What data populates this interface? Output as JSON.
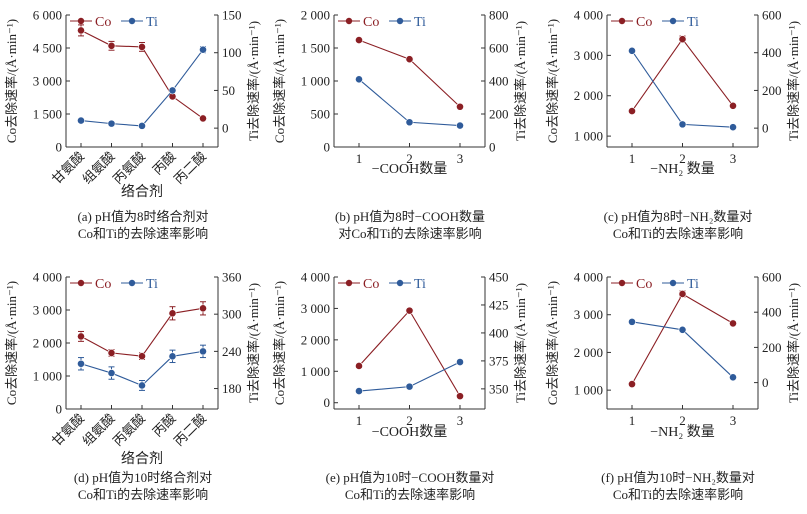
{
  "colors": {
    "co": "#8b1f24",
    "ti": "#2f5b9a",
    "axis": "#333333"
  },
  "chart_data": [
    {
      "id": "a",
      "type": "line",
      "caption": [
        "(a) pH值为8时络合剂对",
        "Co和Ti的去除速率影响"
      ],
      "xlabel": "络合剂",
      "x": [
        "甘氨酸",
        "组氨酸",
        "丙氨酸",
        "丙酸",
        "丙二酸"
      ],
      "x_rotated": true,
      "ylabel_left": "Co去除速率/(Å·min⁻¹)",
      "ylabel_right": "Ti去除速率/(Å·min⁻¹)",
      "ylim_left": [
        0,
        6000
      ],
      "yticks_left": [
        0,
        1500,
        3000,
        4500,
        6000
      ],
      "yticklabels_left": [
        "0",
        "1 500",
        "3 000",
        "4 500",
        "6 000"
      ],
      "ylim_right": [
        -25,
        150
      ],
      "yticks_right": [
        0,
        50,
        100,
        150
      ],
      "yticklabels_right": [
        "0",
        "50",
        "100",
        "150"
      ],
      "legend": [
        "Co",
        "Ti"
      ],
      "legend_position": "top-left",
      "series": [
        {
          "name": "Co",
          "axis": "left",
          "values": [
            5300,
            4600,
            4550,
            2300,
            1300
          ],
          "errors": [
            250,
            200,
            200,
            0,
            0
          ]
        },
        {
          "name": "Ti",
          "axis": "right",
          "values": [
            10,
            6,
            3,
            50,
            104
          ],
          "errors": [
            0,
            0,
            0,
            0,
            4
          ]
        }
      ]
    },
    {
      "id": "b",
      "type": "line",
      "caption": [
        "(b) pH值为8时−COOH数量",
        "对Co和Ti的去除速率影响"
      ],
      "xlabel": "−COOH数量",
      "x": [
        "1",
        "2",
        "3"
      ],
      "x_rotated": false,
      "ylabel_left": "Co去除速率/(Å·min⁻¹)",
      "ylabel_right": "Ti去除速率/(Å·min⁻¹)",
      "ylim_left": [
        0,
        2000
      ],
      "yticks_left": [
        0,
        500,
        1000,
        1500,
        2000
      ],
      "yticklabels_left": [
        "0",
        "500",
        "1 000",
        "1 500",
        "2 000"
      ],
      "ylim_right": [
        0,
        800
      ],
      "yticks_right": [
        0,
        200,
        400,
        600,
        800
      ],
      "yticklabels_right": [
        "0",
        "200",
        "400",
        "600",
        "800"
      ],
      "legend": [
        "Co",
        "Ti"
      ],
      "legend_position": "top-left",
      "series": [
        {
          "name": "Co",
          "axis": "left",
          "values": [
            1620,
            1330,
            610
          ],
          "errors": [
            0,
            0,
            0
          ]
        },
        {
          "name": "Ti",
          "axis": "right",
          "values": [
            410,
            150,
            130
          ],
          "errors": [
            0,
            0,
            0
          ]
        }
      ]
    },
    {
      "id": "c",
      "type": "line",
      "caption": [
        "(c) pH值为8时−NH₂数量对",
        "Co和Ti的去除速率影响"
      ],
      "xlabel": "−NH₂ 数量",
      "x": [
        "1",
        "2",
        "3"
      ],
      "x_rotated": false,
      "ylabel_left": "Co去除速率/(Å·min⁻¹)",
      "ylabel_right": "Ti去除速率/(Å·min⁻¹)",
      "ylim_left": [
        730,
        4000
      ],
      "yticks_left": [
        1000,
        2000,
        3000,
        4000
      ],
      "yticklabels_left": [
        "1 000",
        "2 000",
        "3 000",
        "4 000"
      ],
      "ylim_right": [
        -100,
        600
      ],
      "yticks_right": [
        0,
        200,
        400,
        600
      ],
      "yticklabels_right": [
        "0",
        "200",
        "400",
        "600"
      ],
      "legend": [
        "Co",
        "Ti"
      ],
      "legend_position": "top-left",
      "series": [
        {
          "name": "Co",
          "axis": "left",
          "values": [
            1620,
            3400,
            1750
          ],
          "errors": [
            0,
            80,
            0
          ]
        },
        {
          "name": "Ti",
          "axis": "right",
          "values": [
            410,
            20,
            5
          ],
          "errors": [
            0,
            0,
            0
          ]
        }
      ]
    },
    {
      "id": "d",
      "type": "line",
      "caption": [
        "(d) pH值为10时络合剂对",
        "Co和Ti的去除速率影响"
      ],
      "xlabel": "络合剂",
      "x": [
        "甘氨酸",
        "组氨酸",
        "丙氨酸",
        "丙酸",
        "丙二酸"
      ],
      "x_rotated": true,
      "ylabel_left": "Co去除速率/(Å·min⁻¹)",
      "ylabel_right": "Ti去除速率/(Å·min⁻¹)",
      "ylim_left": [
        0,
        4000
      ],
      "yticks_left": [
        0,
        1000,
        2000,
        3000,
        4000
      ],
      "yticklabels_left": [
        "0",
        "1 000",
        "2 000",
        "3 000",
        "4 000"
      ],
      "ylim_right": [
        147,
        360
      ],
      "yticks_right": [
        180,
        240,
        300,
        360
      ],
      "yticklabels_right": [
        "180",
        "240",
        "300",
        "360"
      ],
      "legend": [
        "Co",
        "Ti"
      ],
      "legend_position": "top-left",
      "series": [
        {
          "name": "Co",
          "axis": "left",
          "values": [
            2200,
            1700,
            1600,
            2900,
            3050
          ],
          "errors": [
            150,
            100,
            100,
            200,
            200
          ]
        },
        {
          "name": "Ti",
          "axis": "right",
          "values": [
            220,
            205,
            185,
            232,
            240
          ],
          "errors": [
            10,
            10,
            8,
            10,
            10
          ]
        }
      ]
    },
    {
      "id": "e",
      "type": "line",
      "caption": [
        "(e) pH值为10时−COOH数量对",
        "Co和Ti的去除速率影响"
      ],
      "xlabel": "−COOH数量",
      "x": [
        "1",
        "2",
        "3"
      ],
      "x_rotated": false,
      "ylabel_left": "Co去除速率/(Å·min⁻¹)",
      "ylabel_right": "Ti去除速率/(Å·min⁻¹)",
      "ylim_left": [
        -200,
        4000
      ],
      "yticks_left": [
        0,
        1000,
        2000,
        3000,
        4000
      ],
      "yticklabels_left": [
        "0",
        "1 000",
        "2 000",
        "3 000",
        "4 000"
      ],
      "ylim_right": [
        332,
        450
      ],
      "yticks_right": [
        350,
        375,
        400,
        425,
        450
      ],
      "yticklabels_right": [
        "350",
        "375",
        "400",
        "425",
        "450"
      ],
      "legend": [
        "Co",
        "Ti"
      ],
      "legend_position": "top-left",
      "series": [
        {
          "name": "Co",
          "axis": "left",
          "values": [
            1170,
            2930,
            210
          ],
          "errors": [
            0,
            0,
            0
          ]
        },
        {
          "name": "Ti",
          "axis": "right",
          "values": [
            348,
            352,
            374
          ],
          "errors": [
            0,
            0,
            0
          ]
        }
      ]
    },
    {
      "id": "f",
      "type": "line",
      "caption": [
        "(f) pH值为10时−NH₂数量对",
        "Co和Ti的去除速率影响"
      ],
      "xlabel": "−NH₂ 数量",
      "x": [
        "1",
        "2",
        "3"
      ],
      "x_rotated": false,
      "ylabel_left": "Co去除速率/(Å·min⁻¹)",
      "ylabel_right": "Ti去除速率/(Å·min⁻¹)",
      "ylim_left": [
        500,
        4000
      ],
      "yticks_left": [
        1000,
        2000,
        3000,
        4000
      ],
      "yticklabels_left": [
        "1 000",
        "2 000",
        "3 000",
        "4 000"
      ],
      "ylim_right": [
        -150,
        600
      ],
      "yticks_right": [
        0,
        200,
        400,
        600
      ],
      "yticklabels_right": [
        "0",
        "200",
        "400",
        "600"
      ],
      "legend": [
        "Co",
        "Ti"
      ],
      "legend_position": "top-left",
      "series": [
        {
          "name": "Co",
          "axis": "left",
          "values": [
            1160,
            3550,
            2770
          ],
          "errors": [
            0,
            80,
            0
          ]
        },
        {
          "name": "Ti",
          "axis": "right",
          "values": [
            345,
            300,
            30
          ],
          "errors": [
            0,
            0,
            0
          ]
        }
      ]
    }
  ]
}
